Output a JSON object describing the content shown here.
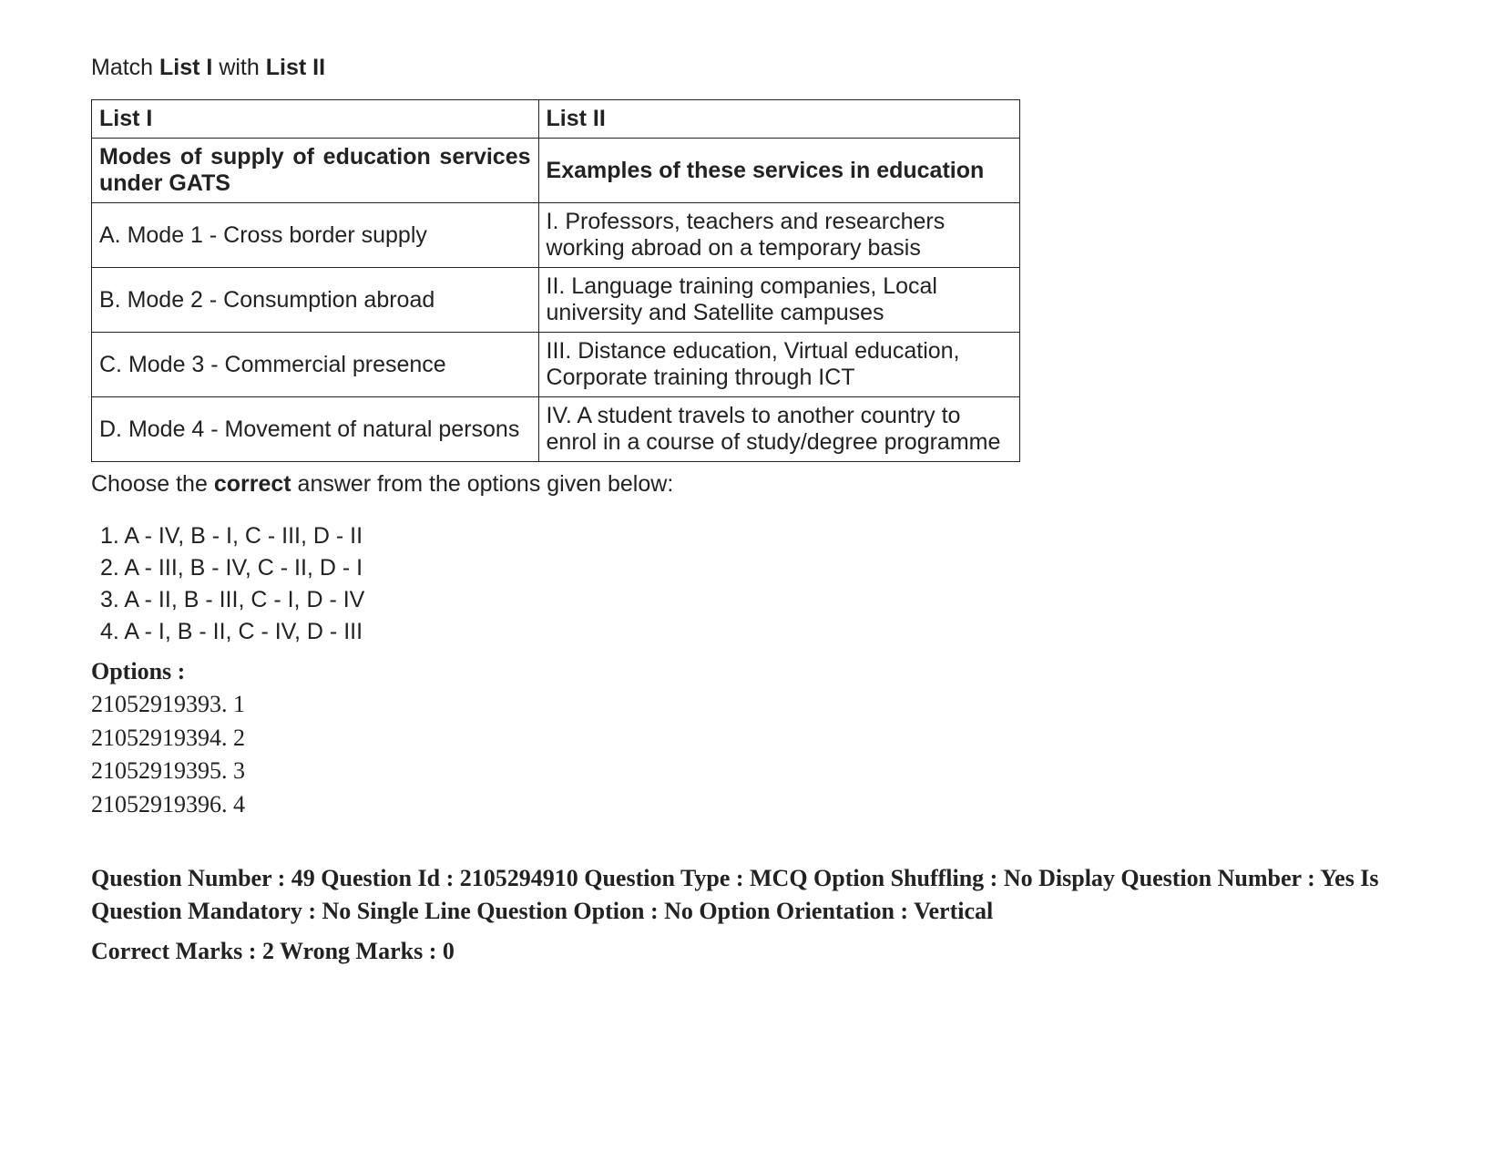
{
  "instruction": {
    "prefix": "Match ",
    "bold1": "List I",
    "mid": " with ",
    "bold2": "List II"
  },
  "table": {
    "headers": {
      "left": "List I",
      "right": "List II"
    },
    "subheaders": {
      "left_line1": "Modes of supply of education services",
      "left_line2": "under GATS",
      "right": "Examples of these services in education"
    },
    "rows": [
      {
        "left": "A. Mode 1 - Cross border supply",
        "right": "I. Professors, teachers and researchers working abroad on a temporary basis"
      },
      {
        "left": "B. Mode 2 - Consumption abroad",
        "right": "II. Language training companies, Local university and Satellite campuses"
      },
      {
        "left": "C. Mode 3 - Commercial presence",
        "right": "III. Distance education, Virtual education, Corporate training through ICT"
      },
      {
        "left": "D. Mode 4 - Movement of natural persons",
        "right": "IV. A student travels to another country to enrol in a course of study/degree programme"
      }
    ]
  },
  "choose": {
    "prefix": "Choose the ",
    "bold": "correct",
    "suffix": " answer from the options given below:"
  },
  "answers": [
    "1. A - IV, B - I, C - III, D - II",
    "2. A - III, B - IV, C - II, D - I",
    "3. A - II, B - III, C - I, D - IV",
    "4. A - I, B - II, C - IV, D - III"
  ],
  "options": {
    "header": "Options :",
    "items": [
      "21052919393. 1",
      "21052919394. 2",
      "21052919395. 3",
      "21052919396. 4"
    ]
  },
  "meta": "Question Number : 49 Question Id : 2105294910 Question Type : MCQ Option Shuffling : No Display Question Number : Yes Is Question Mandatory : No Single Line Question Option : No Option Orientation : Vertical",
  "marks": "Correct Marks : 2 Wrong Marks : 0"
}
